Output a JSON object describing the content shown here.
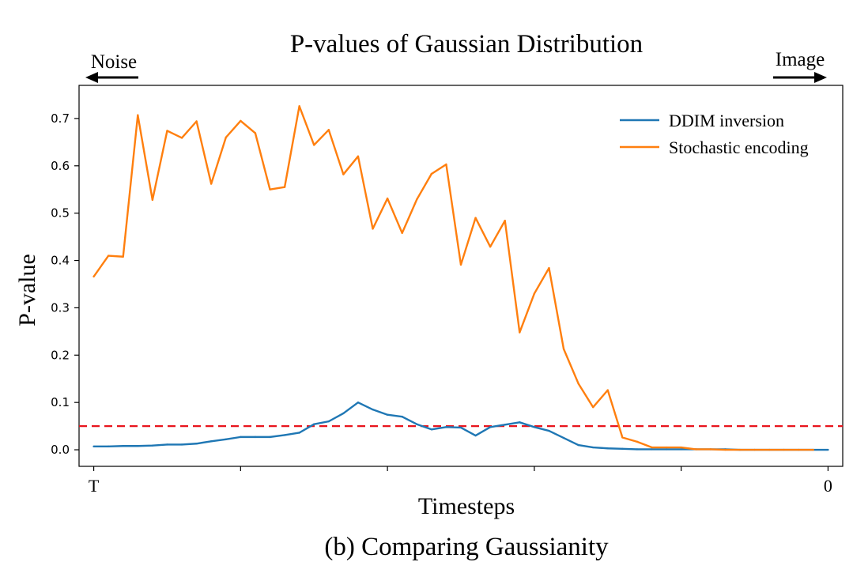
{
  "chart_data": {
    "type": "line",
    "title": "P-values of Gaussian Distribution",
    "caption": "(b) Comparing Gaussianity",
    "xlabel": "Timesteps",
    "ylabel": "P-value",
    "direction_left": "Noise",
    "direction_right": "Image",
    "x_tick_labels": [
      "T",
      "",
      "",
      "",
      "",
      "0"
    ],
    "xlim": [
      -1,
      51
    ],
    "ylim": [
      -0.035,
      0.77
    ],
    "y_ticks": [
      0.0,
      0.1,
      0.2,
      0.3,
      0.4,
      0.5,
      0.6,
      0.7
    ],
    "y_tick_labels": [
      "0.0",
      "0.1",
      "0.2",
      "0.3",
      "0.4",
      "0.5",
      "0.6",
      "0.7"
    ],
    "grid": false,
    "legend_position": "top-right",
    "threshold": {
      "value": 0.05,
      "color": "#e8141c",
      "style": "dashed"
    },
    "series": [
      {
        "name": "DDIM inversion",
        "color": "#1f77b4",
        "x": [
          0,
          1,
          2,
          3,
          4,
          5,
          6,
          7,
          8,
          9,
          10,
          11,
          12,
          13,
          14,
          15,
          16,
          17,
          18,
          19,
          20,
          21,
          22,
          23,
          24,
          25,
          26,
          27,
          28,
          29,
          30,
          31,
          32,
          33,
          34,
          35,
          36,
          37,
          38,
          39,
          40,
          41,
          42,
          43,
          44,
          45,
          46,
          47,
          48,
          49,
          50
        ],
        "values": [
          0.007,
          0.007,
          0.008,
          0.008,
          0.009,
          0.011,
          0.011,
          0.013,
          0.018,
          0.022,
          0.027,
          0.027,
          0.027,
          0.031,
          0.036,
          0.054,
          0.06,
          0.077,
          0.1,
          0.085,
          0.074,
          0.07,
          0.054,
          0.043,
          0.048,
          0.047,
          0.03,
          0.048,
          0.053,
          0.058,
          0.048,
          0.04,
          0.025,
          0.01,
          0.005,
          0.003,
          0.002,
          0.001,
          0.001,
          0.001,
          0.001,
          0.001,
          0.001,
          0.001,
          0.0,
          0.0,
          0.0,
          0.0,
          0.0,
          0.0,
          0.0
        ]
      },
      {
        "name": "Stochastic encoding",
        "color": "#ff7f0e",
        "x": [
          0,
          1,
          2,
          3,
          4,
          5,
          6,
          7,
          8,
          9,
          10,
          11,
          12,
          13,
          14,
          15,
          16,
          17,
          18,
          19,
          20,
          21,
          22,
          23,
          24,
          25,
          26,
          27,
          28,
          29,
          30,
          31,
          32,
          33,
          34,
          35,
          36,
          37,
          38,
          39,
          40,
          41,
          42,
          43,
          44,
          45,
          46,
          47,
          48,
          49
        ],
        "values": [
          0.366,
          0.41,
          0.408,
          0.707,
          0.528,
          0.674,
          0.659,
          0.694,
          0.562,
          0.66,
          0.695,
          0.669,
          0.55,
          0.555,
          0.726,
          0.644,
          0.676,
          0.582,
          0.62,
          0.467,
          0.531,
          0.458,
          0.529,
          0.583,
          0.603,
          0.391,
          0.49,
          0.429,
          0.484,
          0.248,
          0.33,
          0.384,
          0.213,
          0.14,
          0.09,
          0.126,
          0.026,
          0.017,
          0.005,
          0.005,
          0.005,
          0.001,
          0.001,
          0.0,
          0.0,
          0.0,
          0.0,
          0.0,
          0.0,
          0.0
        ]
      }
    ]
  }
}
